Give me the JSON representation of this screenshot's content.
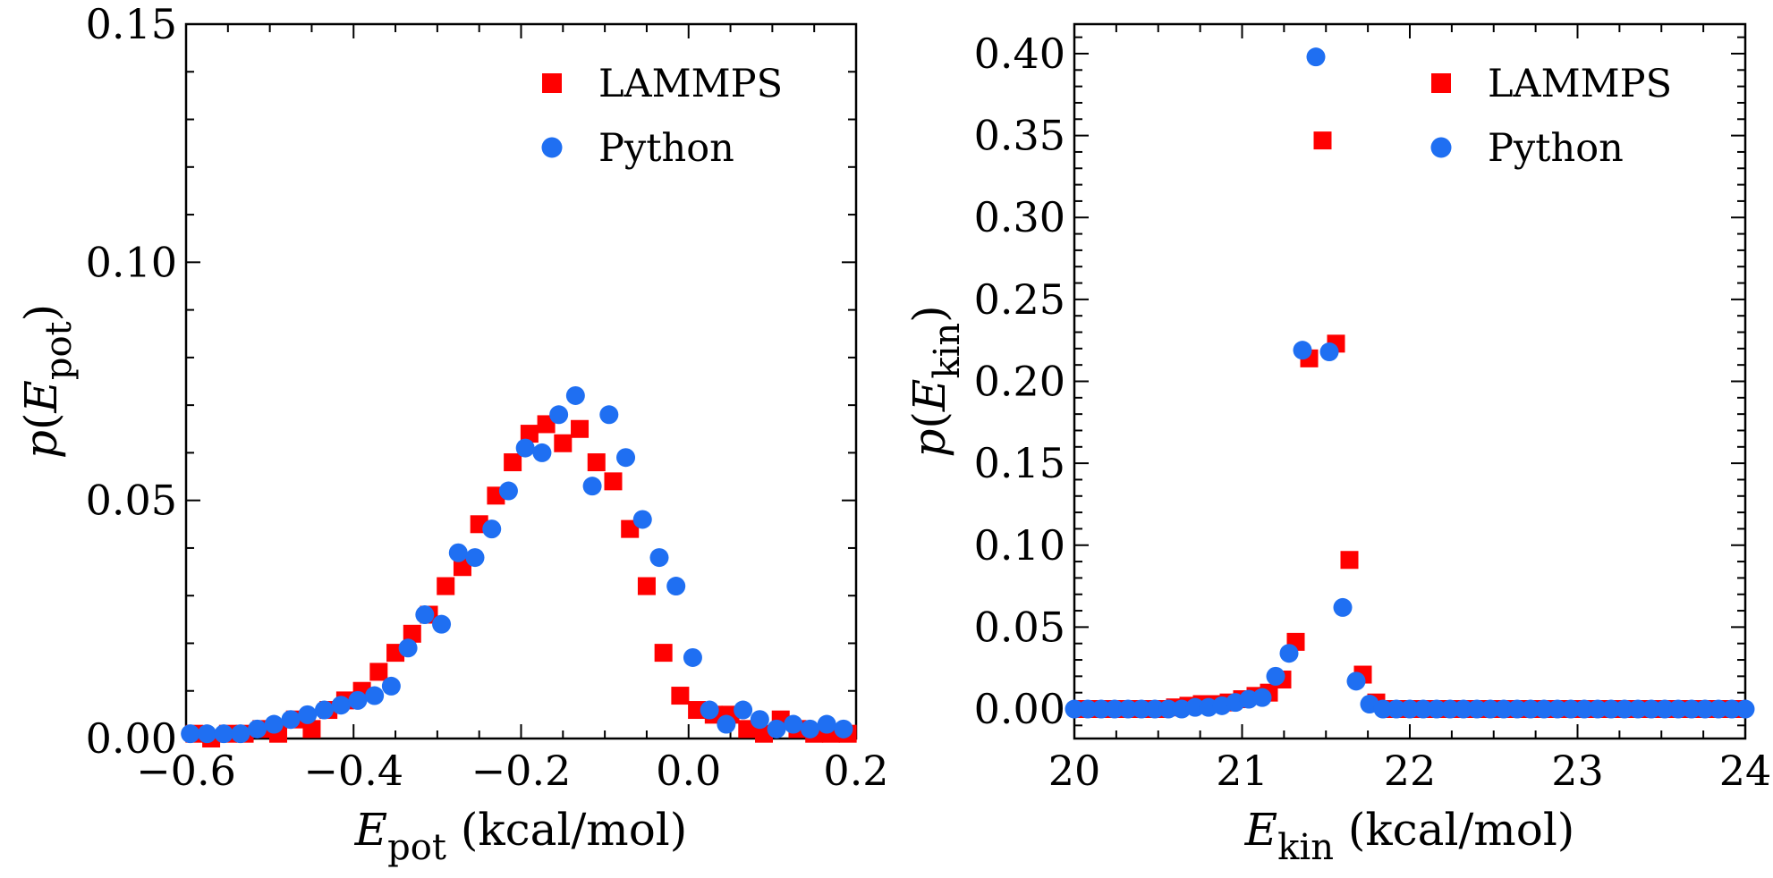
{
  "colors": {
    "lammps": "#ff0000",
    "python": "#1f6ff2",
    "axis": "#000000"
  },
  "chart_data": [
    {
      "type": "scatter",
      "xlabel": {
        "main": "E",
        "sub": "pot",
        "unit": " (kcal/mol)"
      },
      "ylabel": {
        "pre": "p(",
        "main": "E",
        "sub": "pot",
        "post": ")"
      },
      "xlim": [
        -0.6,
        0.2
      ],
      "ylim": [
        0.0,
        0.15
      ],
      "xticks": [
        -0.6,
        -0.4,
        -0.2,
        0.0,
        0.2
      ],
      "xtick_labels": [
        "−0.6",
        "−0.4",
        "−0.2",
        "0.0",
        "0.2"
      ],
      "yticks": [
        0.0,
        0.05,
        0.1,
        0.15
      ],
      "ytick_labels": [
        "0.00",
        "0.05",
        "0.10",
        "0.15"
      ],
      "grid": false,
      "legend_position": "top-right",
      "series": [
        {
          "name": "LAMMPS",
          "marker": "square",
          "color": "#ff0000",
          "x": [
            -0.59,
            -0.57,
            -0.55,
            -0.53,
            -0.51,
            -0.49,
            -0.47,
            -0.45,
            -0.43,
            -0.41,
            -0.39,
            -0.37,
            -0.35,
            -0.33,
            -0.31,
            -0.29,
            -0.27,
            -0.25,
            -0.23,
            -0.21,
            -0.19,
            -0.17,
            -0.15,
            -0.13,
            -0.11,
            -0.09,
            -0.07,
            -0.05,
            -0.03,
            -0.01,
            0.01,
            0.03,
            0.05,
            0.07,
            0.09,
            0.11,
            0.13,
            0.15,
            0.17,
            0.19
          ],
          "y": [
            0.001,
            0.0,
            0.001,
            0.001,
            0.002,
            0.001,
            0.004,
            0.002,
            0.006,
            0.008,
            0.01,
            0.014,
            0.018,
            0.022,
            0.026,
            0.032,
            0.036,
            0.045,
            0.051,
            0.058,
            0.064,
            0.066,
            0.062,
            0.065,
            0.058,
            0.054,
            0.044,
            0.032,
            0.018,
            0.009,
            0.006,
            0.005,
            0.005,
            0.002,
            0.001,
            0.004,
            0.002,
            0.001,
            0.001,
            0.001
          ]
        },
        {
          "name": "Python",
          "marker": "circle",
          "color": "#1f6ff2",
          "x": [
            -0.595,
            -0.575,
            -0.555,
            -0.535,
            -0.515,
            -0.495,
            -0.475,
            -0.455,
            -0.435,
            -0.415,
            -0.395,
            -0.375,
            -0.355,
            -0.335,
            -0.315,
            -0.295,
            -0.275,
            -0.255,
            -0.235,
            -0.215,
            -0.195,
            -0.175,
            -0.155,
            -0.135,
            -0.115,
            -0.095,
            -0.075,
            -0.055,
            -0.035,
            -0.015,
            0.005,
            0.025,
            0.045,
            0.065,
            0.085,
            0.105,
            0.125,
            0.145,
            0.165,
            0.185
          ],
          "y": [
            0.001,
            0.001,
            0.001,
            0.001,
            0.002,
            0.003,
            0.004,
            0.005,
            0.006,
            0.007,
            0.008,
            0.009,
            0.011,
            0.019,
            0.026,
            0.024,
            0.039,
            0.038,
            0.044,
            0.052,
            0.061,
            0.06,
            0.068,
            0.072,
            0.053,
            0.068,
            0.059,
            0.046,
            0.038,
            0.032,
            0.017,
            0.006,
            0.003,
            0.006,
            0.004,
            0.002,
            0.003,
            0.002,
            0.003,
            0.002
          ]
        }
      ]
    },
    {
      "type": "scatter",
      "xlabel": {
        "main": "E",
        "sub": "kin",
        "unit": " (kcal/mol)"
      },
      "ylabel": {
        "pre": "p(",
        "main": "E",
        "sub": "kin",
        "post": ")"
      },
      "xlim": [
        20,
        24
      ],
      "ylim": [
        -0.018,
        0.418
      ],
      "xticks": [
        20,
        21,
        22,
        23,
        24
      ],
      "xtick_labels": [
        "20",
        "21",
        "22",
        "23",
        "24"
      ],
      "yticks": [
        0.0,
        0.05,
        0.1,
        0.15,
        0.2,
        0.25,
        0.3,
        0.35,
        0.4
      ],
      "ytick_labels": [
        "0.00",
        "0.05",
        "0.10",
        "0.15",
        "0.20",
        "0.25",
        "0.30",
        "0.35",
        "0.40"
      ],
      "grid": false,
      "legend_position": "top-right",
      "series": [
        {
          "name": "LAMMPS",
          "marker": "square",
          "color": "#ff0000",
          "x": [
            20.04,
            20.12,
            20.2,
            20.28,
            20.36,
            20.44,
            20.52,
            20.6,
            20.68,
            20.76,
            20.84,
            20.92,
            21.0,
            21.08,
            21.16,
            21.24,
            21.32,
            21.4,
            21.48,
            21.56,
            21.64,
            21.72,
            21.8,
            21.88,
            21.96,
            22.04,
            22.12,
            22.2,
            22.28,
            22.36,
            22.44,
            22.52,
            22.6,
            22.68,
            22.76,
            22.84,
            22.92,
            23.0,
            23.08,
            23.16,
            23.24,
            23.32,
            23.4,
            23.48,
            23.56,
            23.64,
            23.72,
            23.8,
            23.88,
            23.96
          ],
          "y": [
            0.0,
            0.0,
            0.0,
            0.0,
            0.0,
            0.0,
            0.0,
            0.001,
            0.002,
            0.003,
            0.003,
            0.004,
            0.006,
            0.008,
            0.01,
            0.018,
            0.041,
            0.214,
            0.347,
            0.223,
            0.091,
            0.021,
            0.004,
            0.0,
            0.0,
            0.0,
            0.0,
            0.0,
            0.0,
            0.0,
            0.0,
            0.0,
            0.0,
            0.0,
            0.0,
            0.0,
            0.0,
            0.0,
            0.0,
            0.0,
            0.0,
            0.0,
            0.0,
            0.0,
            0.0,
            0.0,
            0.0,
            0.0,
            0.0,
            0.0
          ]
        },
        {
          "name": "Python",
          "marker": "circle",
          "color": "#1f6ff2",
          "x": [
            20.0,
            20.08,
            20.16,
            20.24,
            20.32,
            20.4,
            20.48,
            20.56,
            20.64,
            20.72,
            20.8,
            20.88,
            20.96,
            21.04,
            21.12,
            21.2,
            21.28,
            21.36,
            21.44,
            21.52,
            21.6,
            21.68,
            21.76,
            21.84,
            21.92,
            22.0,
            22.08,
            22.16,
            22.24,
            22.32,
            22.4,
            22.48,
            22.56,
            22.64,
            22.72,
            22.8,
            22.88,
            22.96,
            23.04,
            23.12,
            23.2,
            23.28,
            23.36,
            23.44,
            23.52,
            23.6,
            23.68,
            23.76,
            23.84,
            23.92,
            24.0
          ],
          "y": [
            0.0,
            0.0,
            0.0,
            0.0,
            0.0,
            0.0,
            0.0,
            0.0,
            0.0,
            0.001,
            0.001,
            0.002,
            0.004,
            0.006,
            0.007,
            0.02,
            0.034,
            0.219,
            0.398,
            0.218,
            0.062,
            0.017,
            0.003,
            0.0,
            0.0,
            0.0,
            0.0,
            0.0,
            0.0,
            0.0,
            0.0,
            0.0,
            0.0,
            0.0,
            0.0,
            0.0,
            0.0,
            0.0,
            0.0,
            0.0,
            0.0,
            0.0,
            0.0,
            0.0,
            0.0,
            0.0,
            0.0,
            0.0,
            0.0,
            0.0,
            0.0
          ]
        }
      ]
    }
  ]
}
